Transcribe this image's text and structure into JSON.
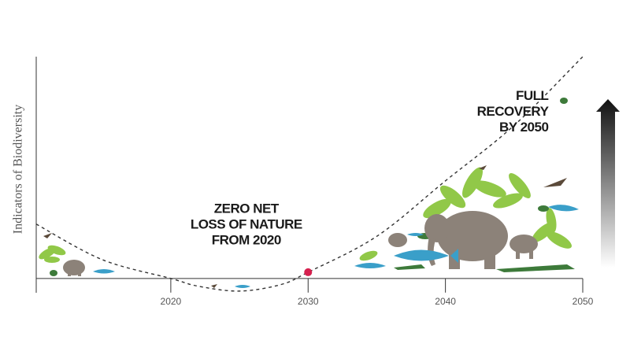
{
  "chart_data": {
    "type": "line",
    "y_label": "Indicators of Biodiversity",
    "x": [
      2010.2,
      2015,
      2020,
      2022,
      2025,
      2028,
      2030,
      2035,
      2040,
      2045,
      2050
    ],
    "series": [
      {
        "color": "#333333",
        "values": [
          24.5,
          8.5,
          0,
          -3.5,
          -5.7,
          -2.8,
          2.8,
          19,
          44,
          69,
          100
        ]
      }
    ],
    "marker": {
      "x": 2030,
      "y": 2.8,
      "color": "#d6204e"
    },
    "xlim": [
      2010.2,
      2050
    ],
    "ylim": [
      -10,
      100
    ],
    "xticks": [
      2020,
      2030,
      2040,
      2050
    ],
    "annotations": [
      {
        "x": 2025.5,
        "y": 24,
        "lines": [
          "ZERO NET",
          "LOSS OF NATURE",
          "FROM 2020"
        ]
      },
      {
        "x": 2047.5,
        "y": 75,
        "lines": [
          "FULL",
          "RECOVERY",
          "BY 2050"
        ]
      }
    ]
  }
}
